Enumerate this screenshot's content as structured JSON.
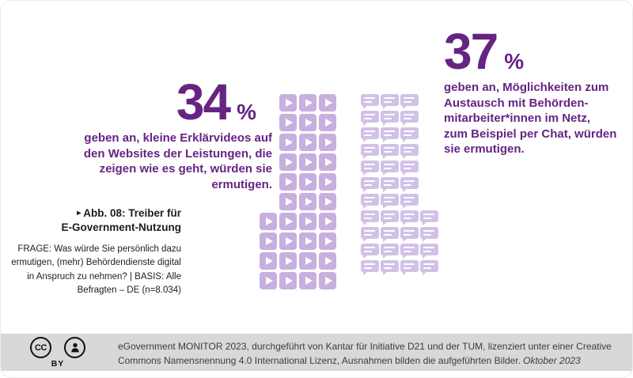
{
  "colors": {
    "purple": "#662482",
    "tile_purple": "#c7b0de",
    "bubble_purple": "#d2c1e7",
    "footer_bg": "#d8d8d8",
    "text_dark": "#1d1d1b",
    "footer_text": "#3c3c3b"
  },
  "stat_left": {
    "value": "34",
    "percent": "%",
    "lines": [
      "geben an, kleine Erklärvideos auf",
      "den Websites der Leistungen, die",
      "zeigen wie es geht, würden sie",
      "ermutigen."
    ]
  },
  "stat_right": {
    "value": "37",
    "percent": "%",
    "lines": [
      "geben an, Möglichkeiten zum",
      "Austausch mit Behörden-",
      "mitarbeiter*innen im Netz,",
      "zum Beispiel per Chat, würden",
      "sie ermutigen."
    ]
  },
  "caption": {
    "marker": "▸",
    "lines": [
      "Abb. 08: Treiber für",
      "E-Government-Nutzung"
    ]
  },
  "question": {
    "lines": [
      "FRAGE: Was würde Sie persönlich dazu",
      "ermutigen, (mehr) Behördendienste digital",
      "in Anspruch zu nehmen? | BASIS: Alle",
      "Befragten – DE (n=8.034)"
    ]
  },
  "footer": {
    "license_cc": "CC",
    "license_code": "BY",
    "text": "eGovernment MONITOR 2023, durchgeführt von Kantar für Initiative D21 und der TUM, lizenziert unter einer Creative Commons Namensnennung 4.0 International Lizenz, Ausnahmen bilden die aufgeführten Bilder.",
    "date": "Oktober 2023"
  },
  "chart_data": {
    "type": "pictogram",
    "title": "Abb. 08: Treiber für E-Government-Nutzung",
    "question": "FRAGE: Was würde Sie persönlich dazu ermutigen, (mehr) Behördendienste digital in Anspruch zu nehmen?",
    "basis": "BASIS: Alle Befragten – DE (n=8.034)",
    "unit": "%",
    "series": [
      {
        "name": "Kleine Erklärvideos auf den Websites der Leistungen, die zeigen wie es geht",
        "value": 34,
        "icon": "video-play",
        "icon_count": 34,
        "rows": [
          3,
          3,
          3,
          3,
          3,
          3,
          4,
          4,
          4,
          4
        ],
        "row_align": "right",
        "color": "#c7b0de"
      },
      {
        "name": "Möglichkeiten zum Austausch mit Behördenmitarbeiter*innen im Netz, zum Beispiel per Chat",
        "value": 37,
        "icon": "chat-bubble",
        "icon_count": 37,
        "rows": [
          3,
          3,
          3,
          3,
          3,
          3,
          3,
          4,
          4,
          4,
          4
        ],
        "row_align": "left",
        "color": "#d2c1e7"
      }
    ]
  }
}
